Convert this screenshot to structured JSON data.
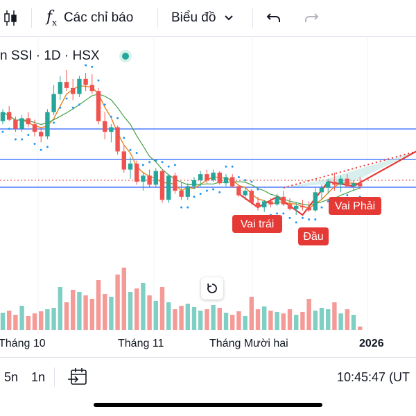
{
  "toolbar": {
    "indicators_label": "Các chỉ báo",
    "chart_type_label": "Biểu đồ",
    "icons": [
      "candles-icon",
      "fx-icon",
      "chevron-down-icon",
      "undo-icon",
      "redo-icon"
    ]
  },
  "symbol": {
    "text": "n SSI · 1D · HSX",
    "status_color": "#26a69a"
  },
  "chart_data": {
    "type": "candlestick",
    "pattern_labels": [
      "Vai trái",
      "Đầu",
      "Vai Phải"
    ],
    "x_tick_labels": [
      "Tháng 10",
      "Tháng 11",
      "Tháng Mười hai",
      "2026"
    ],
    "colors": {
      "up": "#26a69a",
      "down": "#ef5350",
      "ma_fast": "#e8811a",
      "ma_slow": "#43a047",
      "psar": "#2196f3",
      "pattern": "#e53935",
      "levels": "#2962ff"
    },
    "horizontal_levels": [
      "upper",
      "middle",
      "current",
      "lower"
    ],
    "price_axis_visible": false,
    "candles": [
      [
        0.62,
        0.7,
        0.6,
        0.68
      ],
      [
        0.68,
        0.72,
        0.62,
        0.63
      ],
      [
        0.63,
        0.65,
        0.55,
        0.57
      ],
      [
        0.57,
        0.66,
        0.55,
        0.64
      ],
      [
        0.64,
        0.68,
        0.58,
        0.6
      ],
      [
        0.6,
        0.63,
        0.52,
        0.55
      ],
      [
        0.55,
        0.58,
        0.48,
        0.52
      ],
      [
        0.52,
        0.7,
        0.5,
        0.68
      ],
      [
        0.68,
        0.86,
        0.66,
        0.8
      ],
      [
        0.8,
        0.92,
        0.76,
        0.88
      ],
      [
        0.88,
        0.96,
        0.82,
        0.84
      ],
      [
        0.84,
        0.9,
        0.76,
        0.8
      ],
      [
        0.8,
        0.92,
        0.78,
        0.9
      ],
      [
        0.9,
        0.94,
        0.82,
        0.86
      ],
      [
        0.86,
        0.93,
        0.8,
        0.82
      ],
      [
        0.82,
        0.84,
        0.6,
        0.62
      ],
      [
        0.62,
        0.68,
        0.5,
        0.55
      ],
      [
        0.55,
        0.6,
        0.48,
        0.58
      ],
      [
        0.58,
        0.59,
        0.4,
        0.42
      ],
      [
        0.42,
        0.46,
        0.28,
        0.3
      ],
      [
        0.3,
        0.38,
        0.24,
        0.34
      ],
      [
        0.34,
        0.36,
        0.2,
        0.22
      ],
      [
        0.22,
        0.28,
        0.16,
        0.26
      ],
      [
        0.26,
        0.3,
        0.18,
        0.2
      ],
      [
        0.2,
        0.31,
        0.18,
        0.29
      ],
      [
        0.29,
        0.3,
        0.08,
        0.1
      ],
      [
        0.1,
        0.27,
        0.08,
        0.26
      ],
      [
        0.26,
        0.28,
        0.14,
        0.16
      ],
      [
        0.16,
        0.22,
        0.1,
        0.12
      ],
      [
        0.12,
        0.21,
        0.1,
        0.19
      ],
      [
        0.19,
        0.25,
        0.17,
        0.23
      ],
      [
        0.23,
        0.29,
        0.19,
        0.27
      ],
      [
        0.27,
        0.3,
        0.21,
        0.23
      ],
      [
        0.23,
        0.3,
        0.22,
        0.28
      ],
      [
        0.28,
        0.29,
        0.2,
        0.21
      ],
      [
        0.21,
        0.27,
        0.19,
        0.25
      ],
      [
        0.25,
        0.27,
        0.18,
        0.19
      ],
      [
        0.19,
        0.2,
        0.12,
        0.13
      ],
      [
        0.13,
        0.18,
        0.1,
        0.16
      ],
      [
        0.16,
        0.17,
        0.07,
        0.08
      ],
      [
        0.08,
        0.12,
        0.03,
        0.05
      ],
      [
        0.05,
        0.1,
        0.02,
        0.09
      ],
      [
        0.09,
        0.11,
        0.05,
        0.07
      ],
      [
        0.07,
        0.14,
        0.06,
        0.12
      ],
      [
        0.12,
        0.16,
        0.06,
        0.07
      ],
      [
        0.07,
        0.11,
        0.03,
        0.04
      ],
      [
        0.04,
        0.08,
        0.0,
        0.06
      ],
      [
        0.06,
        0.1,
        0.03,
        0.05
      ],
      [
        0.05,
        0.09,
        0.02,
        0.03
      ],
      [
        0.03,
        0.18,
        0.02,
        0.15
      ],
      [
        0.15,
        0.2,
        0.1,
        0.18
      ],
      [
        0.18,
        0.24,
        0.14,
        0.22
      ],
      [
        0.22,
        0.28,
        0.16,
        0.2
      ],
      [
        0.2,
        0.26,
        0.15,
        0.24
      ],
      [
        0.24,
        0.27,
        0.18,
        0.19
      ],
      [
        0.19,
        0.23,
        0.16,
        0.21
      ],
      [
        0.21,
        0.25,
        0.17,
        0.19
      ]
    ],
    "volumes": [
      0.25,
      0.28,
      0.22,
      0.35,
      0.2,
      0.24,
      0.27,
      0.3,
      0.32,
      0.62,
      0.4,
      0.58,
      0.55,
      0.5,
      0.45,
      0.72,
      0.52,
      0.48,
      0.8,
      0.9,
      0.55,
      0.6,
      0.68,
      0.5,
      0.42,
      0.62,
      0.4,
      0.3,
      0.35,
      0.38,
      0.33,
      0.28,
      0.3,
      0.36,
      0.32,
      0.25,
      0.22,
      0.27,
      0.2,
      0.48,
      0.3,
      0.34,
      0.28,
      0.26,
      0.24,
      0.3,
      0.22,
      0.26,
      0.45,
      0.28,
      0.32,
      0.3,
      0.4,
      0.24,
      0.3,
      0.22,
      0.05
    ]
  },
  "reset_icon": "reset-icon",
  "bottom": {
    "range_5n": "5n",
    "range_1n": "1n",
    "time": "10:45:47 (UT",
    "goto_icon": "goto-date-icon"
  }
}
